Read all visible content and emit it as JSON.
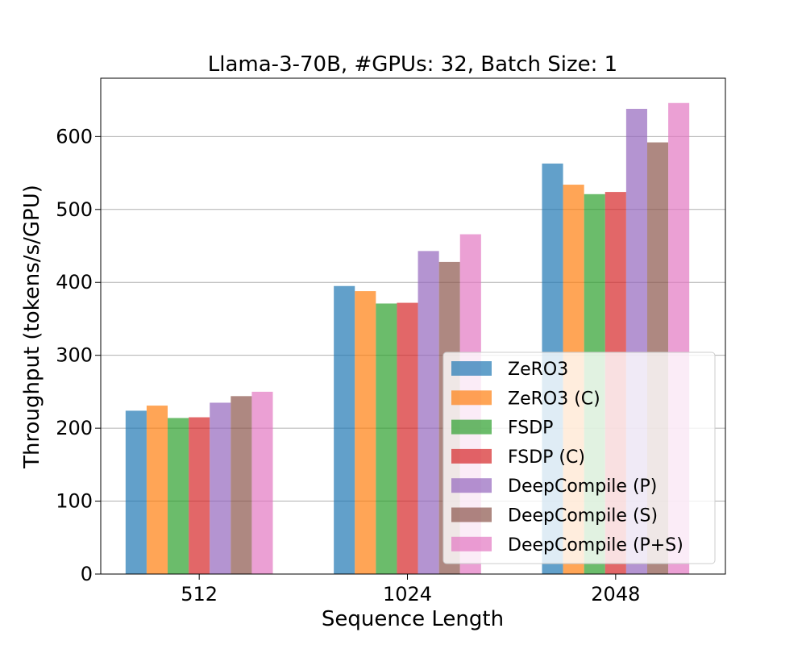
{
  "chart_data": {
    "type": "bar",
    "title": "Llama-3-70B, #GPUs: 32, Batch Size: 1",
    "xlabel": "Sequence Length",
    "ylabel": "Throughput (tokens/s/GPU)",
    "categories": [
      "512",
      "1024",
      "2048"
    ],
    "ylim": [
      0,
      680
    ],
    "yticks": [
      0,
      100,
      200,
      300,
      400,
      500,
      600
    ],
    "grid": "y",
    "legend_position": "lower-right",
    "series": [
      {
        "name": "ZeRO3",
        "color": "#1f77b4",
        "values": [
          224,
          395,
          563
        ]
      },
      {
        "name": "ZeRO3 (C)",
        "color": "#ff7f0e",
        "values": [
          231,
          388,
          534
        ]
      },
      {
        "name": "FSDP",
        "color": "#2ca02c",
        "values": [
          214,
          371,
          521
        ]
      },
      {
        "name": "FSDP (C)",
        "color": "#d62728",
        "values": [
          215,
          372,
          524
        ]
      },
      {
        "name": "DeepCompile (P)",
        "color": "#9467bd",
        "values": [
          235,
          443,
          638
        ]
      },
      {
        "name": "DeepCompile (S)",
        "color": "#8c564b",
        "values": [
          244,
          428,
          592
        ]
      },
      {
        "name": "DeepCompile (P+S)",
        "color": "#e377c2",
        "values": [
          250,
          466,
          646
        ]
      }
    ]
  }
}
